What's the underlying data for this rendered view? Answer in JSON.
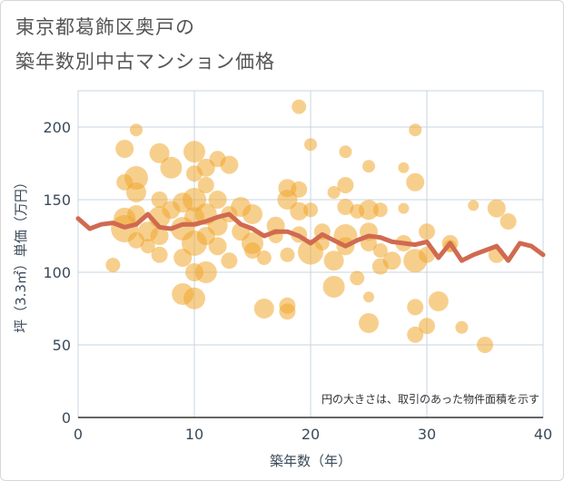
{
  "title_line1": "東京都葛飾区奥戸の",
  "title_line2": "築年数別中古マンション価格",
  "chart_data": {
    "type": "scatter",
    "xlabel": "築年数（年）",
    "ylabel": "坪（3.3㎡）単価（万円）",
    "xlim": [
      0,
      40
    ],
    "ylim": [
      0,
      225
    ],
    "xticks": [
      0,
      10,
      20,
      30,
      40
    ],
    "yticks": [
      0,
      50,
      100,
      150,
      200
    ],
    "grid": true,
    "annotation": "円の大きさは、取引のあった物件面積を示す",
    "colors": {
      "bubble": "#f0a830",
      "line": "#d06a50"
    },
    "bubbles": [
      {
        "x": 3,
        "y": 105,
        "s": 8
      },
      {
        "x": 4,
        "y": 185,
        "s": 10
      },
      {
        "x": 4,
        "y": 162,
        "s": 9
      },
      {
        "x": 4,
        "y": 137,
        "s": 12
      },
      {
        "x": 4,
        "y": 130,
        "s": 15
      },
      {
        "x": 5,
        "y": 198,
        "s": 7
      },
      {
        "x": 5,
        "y": 165,
        "s": 13
      },
      {
        "x": 5,
        "y": 155,
        "s": 11
      },
      {
        "x": 5,
        "y": 140,
        "s": 10
      },
      {
        "x": 5,
        "y": 122,
        "s": 9
      },
      {
        "x": 6,
        "y": 128,
        "s": 11
      },
      {
        "x": 6,
        "y": 118,
        "s": 8
      },
      {
        "x": 7,
        "y": 182,
        "s": 11
      },
      {
        "x": 7,
        "y": 150,
        "s": 9
      },
      {
        "x": 7,
        "y": 138,
        "s": 12
      },
      {
        "x": 7,
        "y": 125,
        "s": 10
      },
      {
        "x": 7,
        "y": 112,
        "s": 9
      },
      {
        "x": 8,
        "y": 172,
        "s": 12
      },
      {
        "x": 8,
        "y": 143,
        "s": 10
      },
      {
        "x": 9,
        "y": 148,
        "s": 11
      },
      {
        "x": 9,
        "y": 130,
        "s": 13
      },
      {
        "x": 9,
        "y": 110,
        "s": 10
      },
      {
        "x": 9,
        "y": 85,
        "s": 12
      },
      {
        "x": 10,
        "y": 183,
        "s": 12
      },
      {
        "x": 10,
        "y": 168,
        "s": 9
      },
      {
        "x": 10,
        "y": 150,
        "s": 13
      },
      {
        "x": 10,
        "y": 138,
        "s": 11
      },
      {
        "x": 10,
        "y": 120,
        "s": 14
      },
      {
        "x": 10,
        "y": 100,
        "s": 10
      },
      {
        "x": 10,
        "y": 82,
        "s": 12
      },
      {
        "x": 11,
        "y": 172,
        "s": 10
      },
      {
        "x": 11,
        "y": 160,
        "s": 9
      },
      {
        "x": 11,
        "y": 140,
        "s": 12
      },
      {
        "x": 11,
        "y": 125,
        "s": 10
      },
      {
        "x": 11,
        "y": 100,
        "s": 12
      },
      {
        "x": 12,
        "y": 178,
        "s": 9
      },
      {
        "x": 12,
        "y": 150,
        "s": 10
      },
      {
        "x": 12,
        "y": 132,
        "s": 11
      },
      {
        "x": 12,
        "y": 118,
        "s": 10
      },
      {
        "x": 13,
        "y": 174,
        "s": 10
      },
      {
        "x": 13,
        "y": 140,
        "s": 9
      },
      {
        "x": 13,
        "y": 108,
        "s": 9
      },
      {
        "x": 14,
        "y": 145,
        "s": 11
      },
      {
        "x": 14,
        "y": 128,
        "s": 10
      },
      {
        "x": 15,
        "y": 140,
        "s": 11
      },
      {
        "x": 15,
        "y": 120,
        "s": 12
      },
      {
        "x": 15,
        "y": 115,
        "s": 9
      },
      {
        "x": 16,
        "y": 110,
        "s": 8
      },
      {
        "x": 16,
        "y": 75,
        "s": 11
      },
      {
        "x": 17,
        "y": 132,
        "s": 10
      },
      {
        "x": 17,
        "y": 125,
        "s": 8
      },
      {
        "x": 18,
        "y": 158,
        "s": 10
      },
      {
        "x": 18,
        "y": 150,
        "s": 11
      },
      {
        "x": 18,
        "y": 112,
        "s": 8
      },
      {
        "x": 18,
        "y": 77,
        "s": 9
      },
      {
        "x": 18,
        "y": 73,
        "s": 9
      },
      {
        "x": 19,
        "y": 214,
        "s": 8
      },
      {
        "x": 19,
        "y": 157,
        "s": 9
      },
      {
        "x": 19,
        "y": 142,
        "s": 10
      },
      {
        "x": 19,
        "y": 126,
        "s": 9
      },
      {
        "x": 20,
        "y": 188,
        "s": 7
      },
      {
        "x": 20,
        "y": 143,
        "s": 8
      },
      {
        "x": 20,
        "y": 114,
        "s": 14
      },
      {
        "x": 21,
        "y": 128,
        "s": 9
      },
      {
        "x": 21,
        "y": 120,
        "s": 8
      },
      {
        "x": 22,
        "y": 155,
        "s": 7
      },
      {
        "x": 22,
        "y": 108,
        "s": 11
      },
      {
        "x": 22,
        "y": 90,
        "s": 12
      },
      {
        "x": 23,
        "y": 183,
        "s": 7
      },
      {
        "x": 23,
        "y": 160,
        "s": 9
      },
      {
        "x": 23,
        "y": 145,
        "s": 9
      },
      {
        "x": 23,
        "y": 125,
        "s": 13
      },
      {
        "x": 23,
        "y": 118,
        "s": 10
      },
      {
        "x": 24,
        "y": 142,
        "s": 8
      },
      {
        "x": 24,
        "y": 96,
        "s": 8
      },
      {
        "x": 25,
        "y": 173,
        "s": 7
      },
      {
        "x": 25,
        "y": 143,
        "s": 11
      },
      {
        "x": 25,
        "y": 128,
        "s": 10
      },
      {
        "x": 25,
        "y": 120,
        "s": 9
      },
      {
        "x": 25,
        "y": 83,
        "s": 6
      },
      {
        "x": 25,
        "y": 65,
        "s": 11
      },
      {
        "x": 26,
        "y": 143,
        "s": 8
      },
      {
        "x": 26,
        "y": 115,
        "s": 8
      },
      {
        "x": 26,
        "y": 104,
        "s": 9
      },
      {
        "x": 27,
        "y": 108,
        "s": 10
      },
      {
        "x": 28,
        "y": 172,
        "s": 6
      },
      {
        "x": 28,
        "y": 144,
        "s": 6
      },
      {
        "x": 28,
        "y": 120,
        "s": 9
      },
      {
        "x": 29,
        "y": 198,
        "s": 7
      },
      {
        "x": 29,
        "y": 162,
        "s": 10
      },
      {
        "x": 29,
        "y": 108,
        "s": 13
      },
      {
        "x": 29,
        "y": 76,
        "s": 9
      },
      {
        "x": 29,
        "y": 57,
        "s": 9
      },
      {
        "x": 30,
        "y": 128,
        "s": 9
      },
      {
        "x": 30,
        "y": 112,
        "s": 9
      },
      {
        "x": 30,
        "y": 63,
        "s": 9
      },
      {
        "x": 31,
        "y": 80,
        "s": 11
      },
      {
        "x": 32,
        "y": 120,
        "s": 9
      },
      {
        "x": 32,
        "y": 118,
        "s": 7
      },
      {
        "x": 33,
        "y": 62,
        "s": 7
      },
      {
        "x": 34,
        "y": 146,
        "s": 6
      },
      {
        "x": 35,
        "y": 50,
        "s": 9
      },
      {
        "x": 36,
        "y": 144,
        "s": 10
      },
      {
        "x": 36,
        "y": 112,
        "s": 9
      },
      {
        "x": 37,
        "y": 135,
        "s": 9
      }
    ],
    "line_x": [
      0,
      1,
      2,
      3,
      4,
      5,
      6,
      7,
      8,
      9,
      10,
      11,
      12,
      13,
      14,
      15,
      16,
      17,
      18,
      19,
      20,
      21,
      22,
      23,
      24,
      25,
      26,
      27,
      28,
      29,
      30,
      31,
      32,
      33,
      34,
      35,
      36,
      37,
      38,
      39,
      40
    ],
    "line_y": [
      137,
      130,
      133,
      134,
      131,
      133,
      140,
      131,
      130,
      133,
      133,
      135,
      138,
      140,
      133,
      130,
      125,
      128,
      128,
      125,
      120,
      126,
      122,
      118,
      122,
      125,
      124,
      121,
      120,
      119,
      121,
      110,
      120,
      108,
      112,
      115,
      118,
      108,
      120,
      118,
      112
    ]
  }
}
